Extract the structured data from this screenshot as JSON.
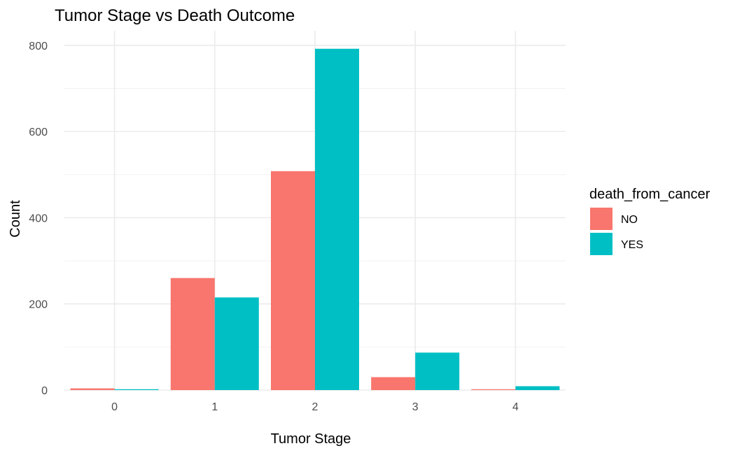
{
  "chart_data": {
    "type": "bar",
    "title": "Tumor Stage vs Death Outcome",
    "xlabel": "Tumor Stage",
    "ylabel": "Count",
    "categories": [
      "0",
      "1",
      "2",
      "3",
      "4"
    ],
    "ylim": [
      0,
      830
    ],
    "yticks": [
      0,
      200,
      400,
      600,
      800
    ],
    "grid": true,
    "legend": {
      "title": "death_from_cancer",
      "position": "right"
    },
    "series": [
      {
        "name": "NO",
        "color": "#F8766D",
        "values": [
          4,
          260,
          508,
          30,
          2
        ]
      },
      {
        "name": "YES",
        "color": "#00BFC4",
        "values": [
          2,
          215,
          792,
          87,
          9
        ]
      }
    ]
  }
}
